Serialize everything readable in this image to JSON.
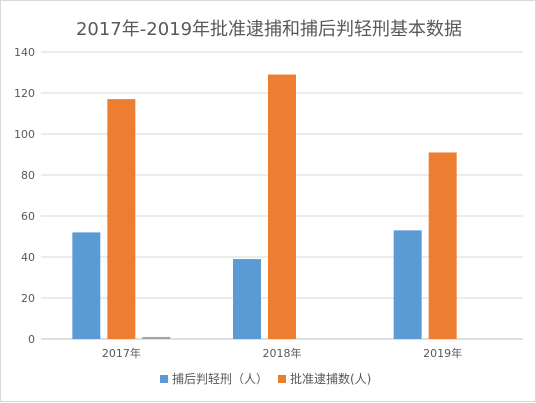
{
  "chart_data": {
    "type": "bar",
    "title": "2017年-2019年批准逮捕和捕后判轻刑基本数据",
    "categories": [
      "2017年",
      "2018年",
      "2019年"
    ],
    "series": [
      {
        "name": "捕后判轻刑（人）",
        "values": [
          52,
          39,
          53
        ],
        "color": "#5b9bd5"
      },
      {
        "name": "批准逮捕数(人)",
        "values": [
          117,
          129,
          91
        ],
        "color": "#ed7d31"
      },
      {
        "name": "",
        "values": [
          1,
          0,
          0
        ],
        "color": "#a5a5a5"
      }
    ],
    "ylim": [
      0,
      140
    ],
    "yticks": [
      0,
      20,
      40,
      60,
      80,
      100,
      120,
      140
    ],
    "grid": true,
    "legend_position": "bottom"
  }
}
